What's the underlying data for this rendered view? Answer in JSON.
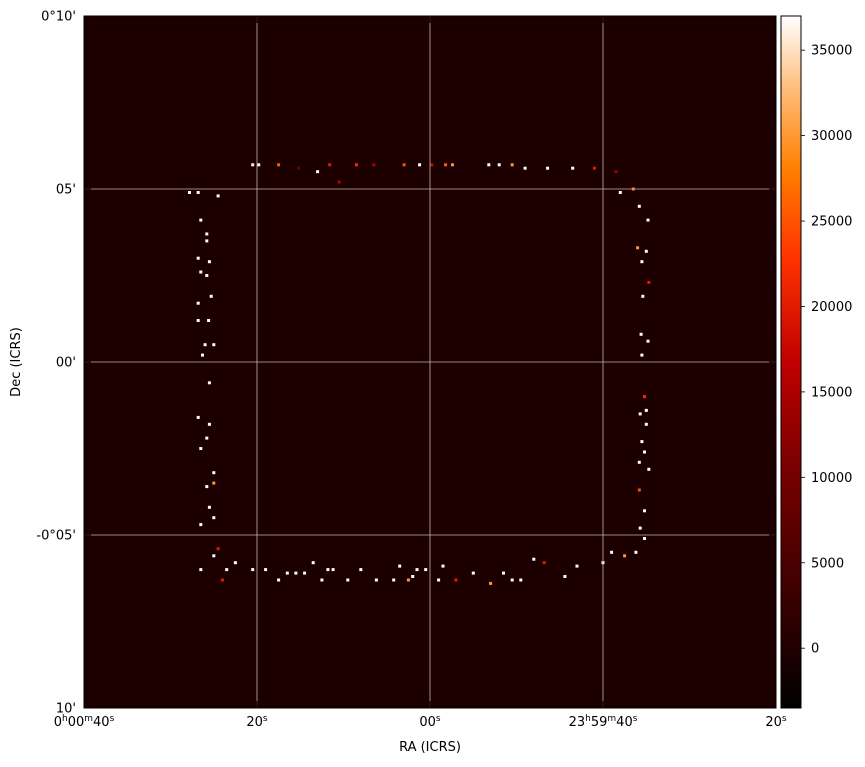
{
  "chart_data": {
    "type": "heatmap",
    "title": "",
    "xlabel": "RA (ICRS)",
    "ylabel": "Dec (ICRS)",
    "grid": true,
    "x_ticks": [
      {
        "label": "0h00m40s",
        "parts": [
          [
            "0",
            "n"
          ],
          [
            "h",
            "s"
          ],
          [
            "00",
            "n"
          ],
          [
            "m",
            "s"
          ],
          [
            "40",
            "n"
          ],
          [
            "s",
            "s"
          ]
        ],
        "ra_sec": 40
      },
      {
        "label": "20s",
        "parts": [
          [
            "20",
            "n"
          ],
          [
            "s",
            "s"
          ]
        ],
        "ra_sec": 20
      },
      {
        "label": "00s",
        "parts": [
          [
            "00",
            "n"
          ],
          [
            "s",
            "s"
          ]
        ],
        "ra_sec": 0
      },
      {
        "label": "23h59m40s",
        "parts": [
          [
            "23",
            "n"
          ],
          [
            "h",
            "s"
          ],
          [
            "59",
            "n"
          ],
          [
            "m",
            "s"
          ],
          [
            "40",
            "n"
          ],
          [
            "s",
            "s"
          ]
        ],
        "ra_sec": -20
      },
      {
        "label": "20s",
        "parts": [
          [
            "20",
            "n"
          ],
          [
            "s",
            "s"
          ]
        ],
        "ra_sec": -40
      }
    ],
    "y_ticks": [
      {
        "label": "0°10'",
        "dec_arcmin": 10
      },
      {
        "label": "05'",
        "dec_arcmin": 5
      },
      {
        "label": "00'",
        "dec_arcmin": 0
      },
      {
        "label": "-0°05'",
        "dec_arcmin": -5
      },
      {
        "label": "10'",
        "dec_arcmin": -10
      }
    ],
    "xlim_ra_sec": [
      40,
      -40
    ],
    "ylim_dec_arcmin": [
      -10,
      10
    ],
    "colorbar": {
      "colormap": "gist_heat",
      "vmin": -3500,
      "vmax": 37000,
      "ticks": [
        0,
        5000,
        10000,
        15000,
        20000,
        25000,
        30000,
        35000
      ]
    },
    "background_value": 0,
    "frame_outline": {
      "shape": "square ring of hot pixels",
      "ra_sec_range": [
        26,
        -26
      ],
      "dec_arcmin_range": [
        -6.3,
        5.7
      ]
    },
    "hot_pixels": [
      {
        "ra": 20.5,
        "dec": 5.7,
        "v": 36000
      },
      {
        "ra": 19.8,
        "dec": 5.7,
        "v": 37000
      },
      {
        "ra": 17.5,
        "dec": 5.7,
        "v": 26000
      },
      {
        "ra": 15.2,
        "dec": 5.6,
        "v": 9000
      },
      {
        "ra": 13.0,
        "dec": 5.5,
        "v": 37000
      },
      {
        "ra": 11.6,
        "dec": 5.7,
        "v": 20000
      },
      {
        "ra": 10.5,
        "dec": 5.2,
        "v": 16000
      },
      {
        "ra": 8.5,
        "dec": 5.7,
        "v": 22000
      },
      {
        "ra": 6.5,
        "dec": 5.7,
        "v": 15000
      },
      {
        "ra": 3.0,
        "dec": 5.7,
        "v": 25000
      },
      {
        "ra": 1.2,
        "dec": 5.7,
        "v": 37000
      },
      {
        "ra": -0.2,
        "dec": 5.7,
        "v": 18000
      },
      {
        "ra": -1.8,
        "dec": 5.7,
        "v": 26000
      },
      {
        "ra": -2.6,
        "dec": 5.7,
        "v": 30000
      },
      {
        "ra": -6.8,
        "dec": 5.7,
        "v": 37000
      },
      {
        "ra": -8.0,
        "dec": 5.7,
        "v": 36500
      },
      {
        "ra": -9.5,
        "dec": 5.7,
        "v": 30000
      },
      {
        "ra": -11.0,
        "dec": 5.6,
        "v": 37000
      },
      {
        "ra": -13.6,
        "dec": 5.6,
        "v": 37000
      },
      {
        "ra": -16.5,
        "dec": 5.6,
        "v": 37000
      },
      {
        "ra": -19.0,
        "dec": 5.6,
        "v": 20000
      },
      {
        "ra": -21.5,
        "dec": 5.5,
        "v": 15000
      },
      {
        "ra": -23.5,
        "dec": 5.0,
        "v": 28000
      },
      {
        "ra": -22.0,
        "dec": 4.9,
        "v": 37000
      },
      {
        "ra": -24.2,
        "dec": 4.5,
        "v": 37000
      },
      {
        "ra": -25.2,
        "dec": 4.1,
        "v": 37000
      },
      {
        "ra": -24.0,
        "dec": 3.3,
        "v": 30000
      },
      {
        "ra": -25.0,
        "dec": 3.2,
        "v": 37000
      },
      {
        "ra": -24.5,
        "dec": 2.9,
        "v": 37000
      },
      {
        "ra": -25.3,
        "dec": 2.3,
        "v": 20000
      },
      {
        "ra": -24.6,
        "dec": 1.9,
        "v": 37000
      },
      {
        "ra": -24.4,
        "dec": 0.8,
        "v": 37000
      },
      {
        "ra": -25.2,
        "dec": 0.6,
        "v": 37000
      },
      {
        "ra": -24.5,
        "dec": 0.2,
        "v": 37000
      },
      {
        "ra": -24.8,
        "dec": -1.0,
        "v": 22000
      },
      {
        "ra": -25.0,
        "dec": -1.4,
        "v": 37000
      },
      {
        "ra": -24.3,
        "dec": -1.5,
        "v": 37000
      },
      {
        "ra": -25.0,
        "dec": -1.8,
        "v": 37000
      },
      {
        "ra": -24.5,
        "dec": -2.3,
        "v": 37000
      },
      {
        "ra": -24.8,
        "dec": -2.6,
        "v": 37000
      },
      {
        "ra": -24.2,
        "dec": -2.9,
        "v": 37000
      },
      {
        "ra": -25.3,
        "dec": -3.1,
        "v": 37000
      },
      {
        "ra": -24.2,
        "dec": -3.7,
        "v": 25000
      },
      {
        "ra": -24.8,
        "dec": -4.3,
        "v": 37000
      },
      {
        "ra": -24.3,
        "dec": -4.8,
        "v": 37000
      },
      {
        "ra": -24.8,
        "dec": -5.1,
        "v": 37000
      },
      {
        "ra": -23.8,
        "dec": -5.5,
        "v": 37000
      },
      {
        "ra": -22.5,
        "dec": -5.6,
        "v": 30000
      },
      {
        "ra": -21.0,
        "dec": -5.5,
        "v": 37000
      },
      {
        "ra": -20.0,
        "dec": -5.8,
        "v": 37000
      },
      {
        "ra": -17.0,
        "dec": -5.9,
        "v": 37000
      },
      {
        "ra": -15.6,
        "dec": -6.2,
        "v": 37000
      },
      {
        "ra": -13.2,
        "dec": -5.8,
        "v": 20000
      },
      {
        "ra": -12.0,
        "dec": -5.7,
        "v": 37000
      },
      {
        "ra": -10.5,
        "dec": -6.3,
        "v": 37000
      },
      {
        "ra": -9.5,
        "dec": -6.3,
        "v": 37000
      },
      {
        "ra": -8.5,
        "dec": -6.1,
        "v": 37000
      },
      {
        "ra": -7.0,
        "dec": -6.4,
        "v": 30000
      },
      {
        "ra": -5.0,
        "dec": -6.1,
        "v": 37000
      },
      {
        "ra": -3.0,
        "dec": -6.3,
        "v": 20000
      },
      {
        "ra": -1.5,
        "dec": -5.9,
        "v": 37000
      },
      {
        "ra": -1.0,
        "dec": -6.3,
        "v": 37000
      },
      {
        "ra": 0.5,
        "dec": -6.0,
        "v": 37000
      },
      {
        "ra": 1.5,
        "dec": -6.0,
        "v": 37000
      },
      {
        "ra": 2.0,
        "dec": -6.2,
        "v": 37000
      },
      {
        "ra": 2.5,
        "dec": -6.3,
        "v": 30000
      },
      {
        "ra": 3.5,
        "dec": -5.9,
        "v": 37000
      },
      {
        "ra": 4.2,
        "dec": -6.3,
        "v": 37000
      },
      {
        "ra": 6.2,
        "dec": -6.3,
        "v": 37000
      },
      {
        "ra": 8.0,
        "dec": -6.0,
        "v": 37000
      },
      {
        "ra": 9.5,
        "dec": -6.3,
        "v": 37000
      },
      {
        "ra": 11.2,
        "dec": -6.0,
        "v": 37000
      },
      {
        "ra": 11.8,
        "dec": -6.0,
        "v": 37000
      },
      {
        "ra": 12.5,
        "dec": -6.3,
        "v": 37000
      },
      {
        "ra": 13.5,
        "dec": -5.8,
        "v": 37000
      },
      {
        "ra": 14.5,
        "dec": -6.1,
        "v": 37000
      },
      {
        "ra": 15.5,
        "dec": -6.1,
        "v": 37000
      },
      {
        "ra": 16.5,
        "dec": -6.1,
        "v": 37000
      },
      {
        "ra": 17.5,
        "dec": -6.3,
        "v": 37000
      },
      {
        "ra": 19.0,
        "dec": -6.0,
        "v": 37000
      },
      {
        "ra": 20.5,
        "dec": -6.0,
        "v": 37000
      },
      {
        "ra": 24.0,
        "dec": -6.3,
        "v": 20000
      },
      {
        "ra": 26.5,
        "dec": -6.0,
        "v": 37000
      },
      {
        "ra": 23.5,
        "dec": -6.0,
        "v": 37000
      },
      {
        "ra": 25.0,
        "dec": -5.6,
        "v": 37000
      },
      {
        "ra": 27.8,
        "dec": 4.9,
        "v": 37000
      },
      {
        "ra": 26.8,
        "dec": 4.9,
        "v": 37000
      },
      {
        "ra": 24.5,
        "dec": 4.8,
        "v": 37000
      },
      {
        "ra": 26.5,
        "dec": 4.1,
        "v": 37000
      },
      {
        "ra": 25.8,
        "dec": 3.7,
        "v": 37000
      },
      {
        "ra": 25.8,
        "dec": 3.5,
        "v": 37000
      },
      {
        "ra": 26.8,
        "dec": 3.0,
        "v": 37000
      },
      {
        "ra": 25.5,
        "dec": 2.9,
        "v": 37000
      },
      {
        "ra": 26.5,
        "dec": 2.6,
        "v": 37000
      },
      {
        "ra": 25.8,
        "dec": 2.5,
        "v": 37000
      },
      {
        "ra": 25.3,
        "dec": 1.9,
        "v": 37000
      },
      {
        "ra": 26.8,
        "dec": 1.7,
        "v": 37000
      },
      {
        "ra": 26.8,
        "dec": 1.2,
        "v": 37000
      },
      {
        "ra": 25.6,
        "dec": 1.2,
        "v": 37000
      },
      {
        "ra": 26.0,
        "dec": 0.5,
        "v": 37000
      },
      {
        "ra": 26.3,
        "dec": 0.2,
        "v": 37000
      },
      {
        "ra": 25.0,
        "dec": 0.5,
        "v": 37000
      },
      {
        "ra": 25.5,
        "dec": -0.6,
        "v": 37000
      },
      {
        "ra": 26.8,
        "dec": -1.6,
        "v": 37000
      },
      {
        "ra": 25.5,
        "dec": -1.8,
        "v": 37000
      },
      {
        "ra": 25.8,
        "dec": -2.2,
        "v": 37000
      },
      {
        "ra": 26.5,
        "dec": -2.5,
        "v": 37000
      },
      {
        "ra": 25.0,
        "dec": -3.2,
        "v": 37000
      },
      {
        "ra": 25.0,
        "dec": -3.5,
        "v": 30000
      },
      {
        "ra": 25.8,
        "dec": -3.6,
        "v": 37000
      },
      {
        "ra": 25.5,
        "dec": -4.2,
        "v": 37000
      },
      {
        "ra": 25.0,
        "dec": -4.5,
        "v": 37000
      },
      {
        "ra": 24.5,
        "dec": -5.4,
        "v": 20000
      },
      {
        "ra": 22.5,
        "dec": -5.8,
        "v": 37000
      },
      {
        "ra": 26.5,
        "dec": -4.7,
        "v": 37000
      }
    ]
  }
}
